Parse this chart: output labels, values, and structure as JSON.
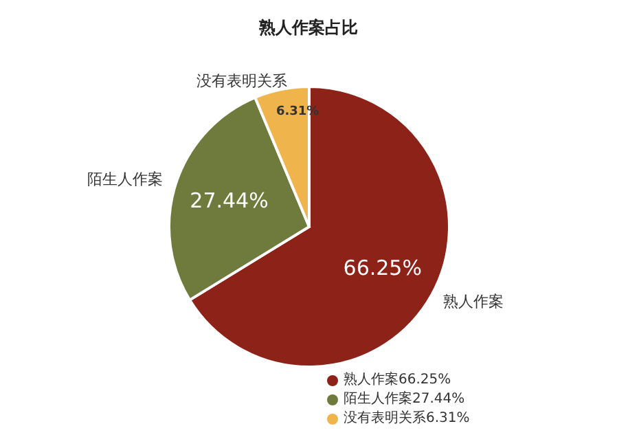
{
  "chart_data": {
    "type": "pie",
    "title": "熟人作案占比",
    "categories": [
      "熟人作案",
      "陌生人作案",
      "没有表明关系"
    ],
    "values": [
      66.25,
      27.44,
      6.31
    ],
    "value_labels": [
      "66.25%",
      "27.44%",
      "6.31%"
    ],
    "colors": [
      "#8c2218",
      "#6f7b3c",
      "#f0b44c"
    ],
    "legend": "bottom right"
  }
}
